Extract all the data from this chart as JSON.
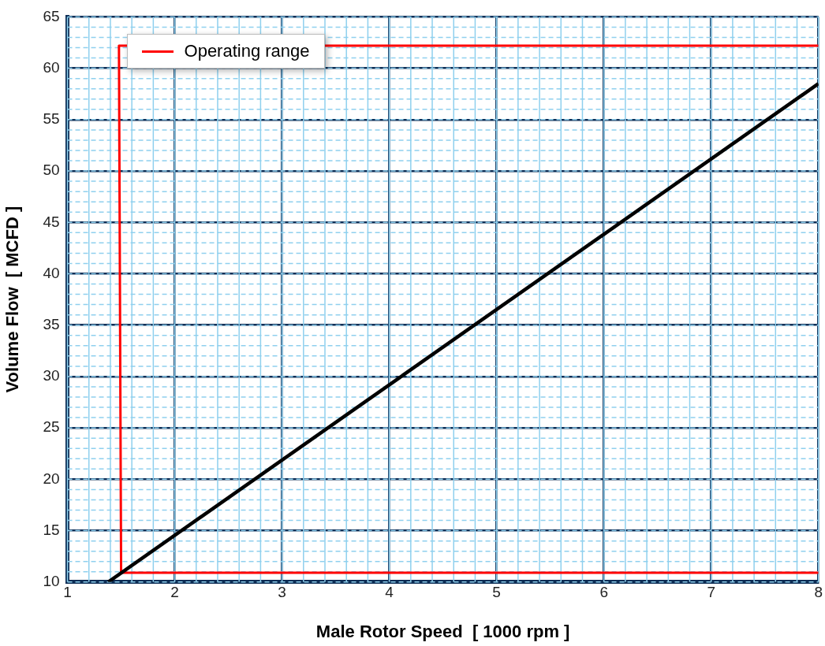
{
  "chart_data": {
    "type": "line",
    "xlabel": "Male Rotor Speed  [ 1000 rpm ]",
    "ylabel": "Volume Flow  [ MCFD ]",
    "xlim": [
      1,
      8
    ],
    "xticks": [
      1,
      2,
      3,
      4,
      5,
      6,
      7,
      8
    ],
    "ylim": [
      10,
      65
    ],
    "yticks": [
      10,
      15,
      20,
      25,
      30,
      35,
      40,
      45,
      50,
      55,
      60,
      65
    ],
    "grid": true,
    "legend": "top left",
    "marker": "none",
    "line_style": "solid",
    "series": [
      {
        "color": "#000000",
        "x": [
          1.38,
          8
        ],
        "values": [
          10,
          58.5
        ]
      },
      {
        "name": "Operating range",
        "color": "#ff0000",
        "x": [
          8,
          1.5,
          1.48,
          8
        ],
        "values": [
          10.9,
          10.9,
          62.2,
          62.2
        ]
      }
    ]
  }
}
